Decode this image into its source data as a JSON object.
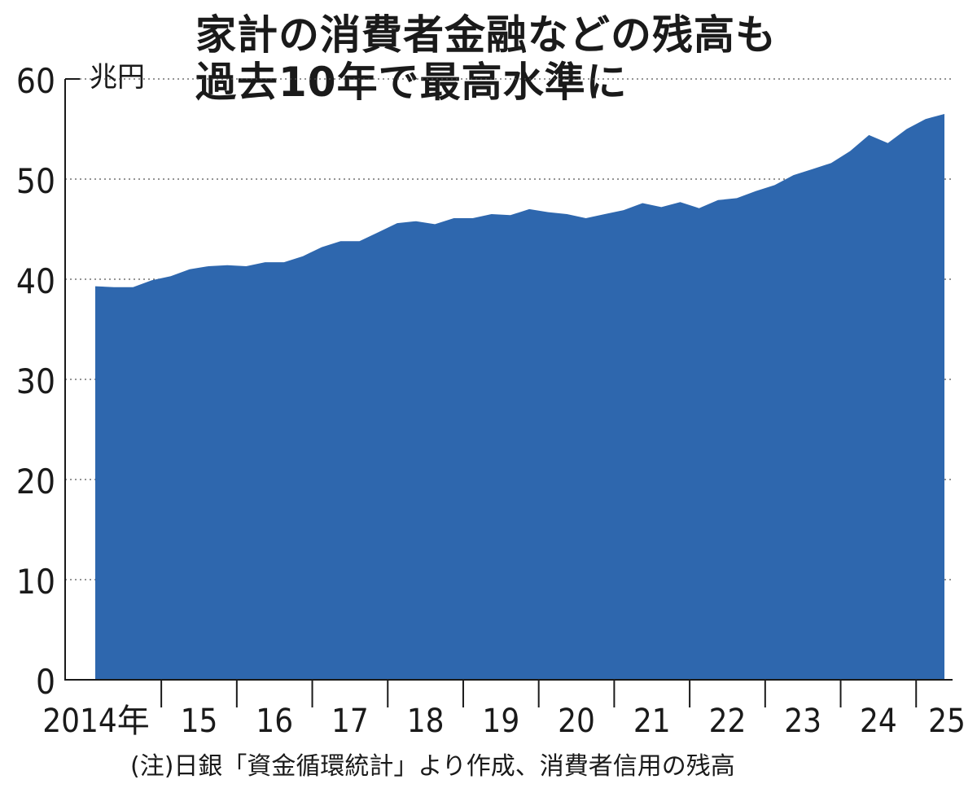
{
  "title": {
    "line1": "家計の消費者金融などの残高も",
    "line2": "過去10年で最高水準に"
  },
  "unit_label": "兆円",
  "footnote": "(注)日銀「資金循環統計」より作成、消費者信用の残高",
  "colors": {
    "area": "#2e67ae",
    "axis": "#1a1a1a",
    "grid": "#555555"
  },
  "chart_data": {
    "type": "area",
    "y_unit": "兆円",
    "ylim": [
      0,
      60
    ],
    "y_ticks": [
      0,
      10,
      20,
      30,
      40,
      50,
      60
    ],
    "grid": "dotted horizontal lines at 10-unit intervals",
    "x_tick_labels": [
      "2014年",
      "15",
      "16",
      "17",
      "18",
      "19",
      "20",
      "21",
      "22",
      "23",
      "24",
      "25"
    ],
    "x_years": [
      2014,
      2015,
      2016,
      2017,
      2018,
      2019,
      2020,
      2021,
      2022,
      2023,
      2024,
      2025
    ],
    "series": [
      {
        "frequency": "quarterly",
        "x": [
          "2014Q1",
          "2014Q2",
          "2014Q3",
          "2014Q4",
          "2015Q1",
          "2015Q2",
          "2015Q3",
          "2015Q4",
          "2016Q1",
          "2016Q2",
          "2016Q3",
          "2016Q4",
          "2017Q1",
          "2017Q2",
          "2017Q3",
          "2017Q4",
          "2018Q1",
          "2018Q2",
          "2018Q3",
          "2018Q4",
          "2019Q1",
          "2019Q2",
          "2019Q3",
          "2019Q4",
          "2020Q1",
          "2020Q2",
          "2020Q3",
          "2020Q4",
          "2021Q1",
          "2021Q2",
          "2021Q3",
          "2021Q4",
          "2022Q1",
          "2022Q2",
          "2022Q3",
          "2022Q4",
          "2023Q1",
          "2023Q2",
          "2023Q3",
          "2023Q4",
          "2024Q1",
          "2024Q2",
          "2024Q3",
          "2024Q4",
          "2025Q1",
          "2025Q2"
        ],
        "values": [
          39.3,
          39.2,
          39.2,
          39.9,
          40.3,
          41.0,
          41.3,
          41.4,
          41.3,
          41.7,
          41.7,
          42.3,
          43.2,
          43.8,
          43.8,
          44.7,
          45.6,
          45.8,
          45.5,
          46.1,
          46.1,
          46.5,
          46.4,
          47.0,
          46.7,
          46.5,
          46.1,
          46.5,
          46.9,
          47.6,
          47.2,
          47.7,
          47.1,
          47.9,
          48.1,
          48.8,
          49.4,
          50.4,
          51.0,
          51.6,
          52.8,
          54.4,
          53.6,
          55.0,
          56.0,
          56.5
        ]
      }
    ]
  }
}
